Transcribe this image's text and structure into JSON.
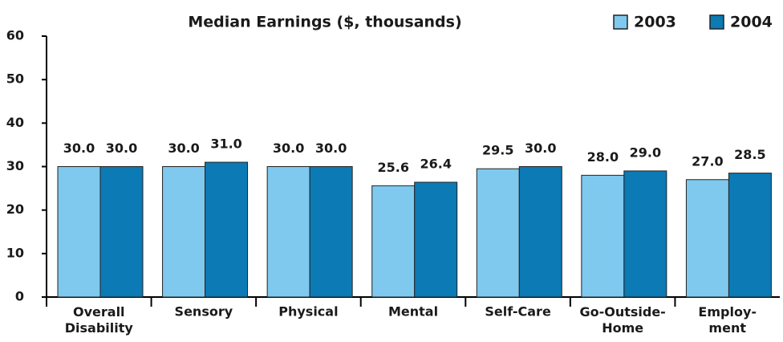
{
  "chart_data": {
    "type": "bar",
    "title": "Median Earnings ($, thousands)",
    "categories": [
      "Overall\nDisability",
      "Sensory",
      "Physical",
      "Mental",
      "Self-Care",
      "Go-Outside-\nHome",
      "Employ-\nment"
    ],
    "series": [
      {
        "name": "2003",
        "color": "#7fc8ee",
        "values": [
          30,
          30,
          30,
          25.6,
          29.5,
          28,
          27
        ],
        "value_labels": [
          "30.0",
          "30.0",
          "30.0",
          "25.6",
          "29.5",
          "28.0",
          "27.0"
        ]
      },
      {
        "name": "2004",
        "color": "#0b7ab5",
        "values": [
          30,
          31,
          30,
          26.4,
          30,
          29,
          28.5
        ],
        "value_labels": [
          "30.0",
          "31.0",
          "30.0",
          "26.4",
          "30.0",
          "29.0",
          "28.5"
        ]
      }
    ],
    "ylim": [
      0,
      60
    ],
    "yticks": [
      0,
      10,
      20,
      30,
      40,
      50,
      60
    ],
    "legend": "top-right"
  }
}
